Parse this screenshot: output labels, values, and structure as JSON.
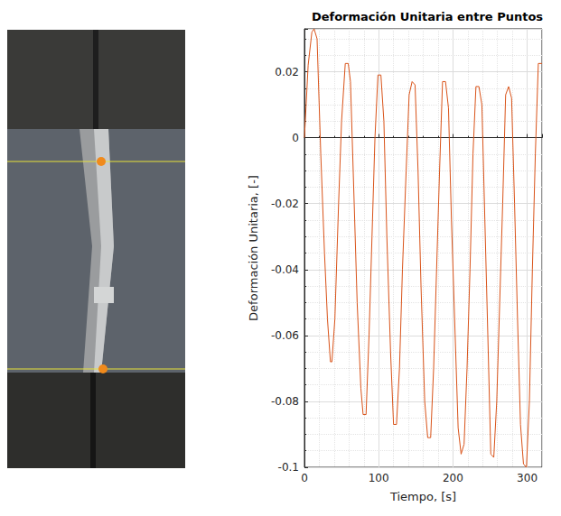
{
  "chart_data": {
    "type": "line",
    "title": "Deformación Unitaria entre Puntos",
    "x_label": "Tiempo, [s]",
    "y_label": "Deformación Unitaria, [-]",
    "x": [
      0,
      5,
      10,
      13,
      17,
      22,
      27,
      31,
      35,
      37,
      41,
      46,
      50,
      55,
      59,
      62,
      67,
      71,
      76,
      79,
      83,
      87,
      91,
      95,
      99,
      103,
      107,
      111,
      116,
      120,
      124,
      128,
      132,
      137,
      141,
      145,
      149,
      153,
      157,
      162,
      166,
      170,
      174,
      178,
      182,
      186,
      190,
      194,
      198,
      203,
      207,
      211,
      215,
      219,
      223,
      227,
      231,
      235,
      239,
      243,
      247,
      251,
      255,
      259,
      263,
      267,
      271,
      275,
      279,
      283,
      287,
      291,
      295,
      299,
      303,
      307,
      311,
      315,
      320
    ],
    "values": [
      0,
      0.022,
      0.032,
      0.033,
      0.03,
      -0.005,
      -0.035,
      -0.055,
      -0.068,
      -0.068,
      -0.055,
      -0.02,
      0.005,
      0.0225,
      0.0225,
      0.017,
      -0.02,
      -0.05,
      -0.076,
      -0.084,
      -0.084,
      -0.06,
      -0.03,
      0,
      0.019,
      0.019,
      0.005,
      -0.03,
      -0.065,
      -0.087,
      -0.087,
      -0.07,
      -0.04,
      -0.01,
      0.013,
      0.017,
      0.016,
      -0.01,
      -0.045,
      -0.08,
      -0.091,
      -0.091,
      -0.07,
      -0.04,
      -0.01,
      0.017,
      0.017,
      0.009,
      -0.025,
      -0.06,
      -0.088,
      -0.096,
      -0.093,
      -0.07,
      -0.04,
      -0.005,
      0.0155,
      0.0155,
      0.01,
      -0.025,
      -0.06,
      -0.096,
      -0.097,
      -0.08,
      -0.05,
      -0.02,
      0.013,
      0.0155,
      0.012,
      -0.02,
      -0.055,
      -0.087,
      -0.099,
      -0.1,
      -0.08,
      -0.04,
      -0.005,
      0.0225,
      0.0225
    ],
    "color": "#d95319",
    "line_style": "solid",
    "marker": "none",
    "xlim": [
      0,
      320
    ],
    "ylim": [
      -0.1,
      0.033
    ],
    "xticks": [
      0,
      100,
      200,
      300
    ],
    "yticks": [
      -0.1,
      -0.08,
      -0.06,
      -0.04,
      -0.02,
      0,
      0.02
    ],
    "grid": true
  }
}
